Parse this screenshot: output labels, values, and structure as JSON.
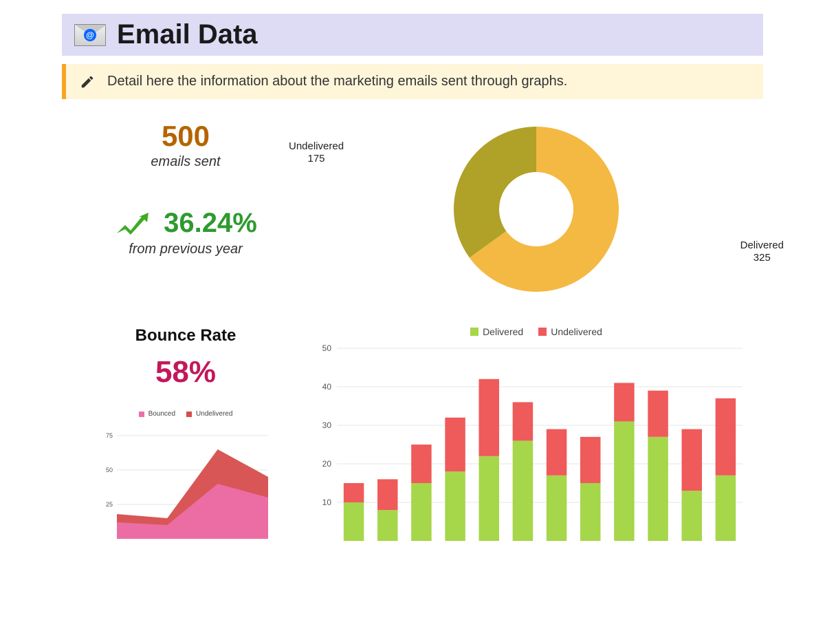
{
  "header": {
    "title": "Email Data",
    "bg_color": "#dedbf5"
  },
  "note": {
    "text": "Detail here the information about the marketing emails sent through graphs.",
    "bg_color": "#fff6da",
    "border_color": "#f5a623"
  },
  "summary": {
    "emails_sent_value": "500",
    "emails_sent_label": "emails sent",
    "emails_sent_color": "#b56400",
    "growth_pct": "36.24%",
    "growth_label": "from previous year",
    "growth_color": "#2e9a2e",
    "arrow_color": "#3eaa25"
  },
  "donut": {
    "type": "donut",
    "delivered_label": "Delivered",
    "delivered_value": 325,
    "delivered_text": "325",
    "delivered_color": "#f4b942",
    "undelivered_label": "Undelivered",
    "undelivered_value": 175,
    "undelivered_text": "175",
    "undelivered_color": "#b0a128",
    "inner_radius": 0.45,
    "total": 500
  },
  "bounce": {
    "title": "Bounce Rate",
    "pct": "58%",
    "pct_color": "#c2185b",
    "area_chart": {
      "type": "area",
      "legend": [
        {
          "label": "Bounced",
          "color": "#ec6fa9"
        },
        {
          "label": "Undelivered",
          "color": "#d64d4d"
        }
      ],
      "x_points": 4,
      "bounced": [
        12,
        10,
        40,
        30
      ],
      "undelivered": [
        18,
        15,
        65,
        45
      ],
      "y_ticks": [
        25,
        50,
        75
      ],
      "ymax": 80,
      "grid_color": "#e5e5e5"
    }
  },
  "stacked_bar": {
    "type": "stacked-bar",
    "legend": [
      {
        "label": "Delivered",
        "color": "#a6d64a"
      },
      {
        "label": "Undelivered",
        "color": "#ef5a5a"
      }
    ],
    "y_ticks": [
      10,
      20,
      30,
      40,
      50
    ],
    "ymax": 50,
    "bar_width": 0.6,
    "grid_color": "#e5e5e5",
    "data": [
      {
        "delivered": 10,
        "undelivered": 5
      },
      {
        "delivered": 8,
        "undelivered": 8
      },
      {
        "delivered": 15,
        "undelivered": 10
      },
      {
        "delivered": 18,
        "undelivered": 14
      },
      {
        "delivered": 22,
        "undelivered": 20
      },
      {
        "delivered": 26,
        "undelivered": 10
      },
      {
        "delivered": 17,
        "undelivered": 12
      },
      {
        "delivered": 15,
        "undelivered": 12
      },
      {
        "delivered": 31,
        "undelivered": 10
      },
      {
        "delivered": 27,
        "undelivered": 12
      },
      {
        "delivered": 13,
        "undelivered": 16
      },
      {
        "delivered": 17,
        "undelivered": 20
      }
    ]
  }
}
